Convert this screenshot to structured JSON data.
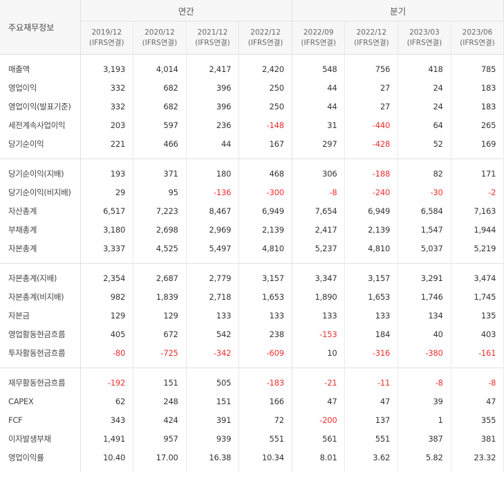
{
  "header": {
    "corner_label": "주요재무정보",
    "annual_label": "연간",
    "quarter_label": "분기",
    "annual_periods": [
      {
        "date": "2019/12",
        "basis": "(IFRS연결)"
      },
      {
        "date": "2020/12",
        "basis": "(IFRS연결)"
      },
      {
        "date": "2021/12",
        "basis": "(IFRS연결)"
      },
      {
        "date": "2022/12",
        "basis": "(IFRS연결)"
      }
    ],
    "quarter_periods": [
      {
        "date": "2022/09",
        "basis": "(IFRS연결)"
      },
      {
        "date": "2022/12",
        "basis": "(IFRS연결)"
      },
      {
        "date": "2023/03",
        "basis": "(IFRS연결)"
      },
      {
        "date": "2023/06",
        "basis": "(IFRS연결)"
      }
    ]
  },
  "colors": {
    "negative": "#ee2e2e",
    "text": "#333333",
    "header_bg": "#f7f7f7"
  },
  "groups": [
    [
      {
        "label": "매출액",
        "values": [
          "3,193",
          "4,014",
          "2,417",
          "2,420",
          "548",
          "756",
          "418",
          "785"
        ]
      },
      {
        "label": "영업이익",
        "values": [
          "332",
          "682",
          "396",
          "250",
          "44",
          "27",
          "24",
          "183"
        ]
      },
      {
        "label": "영업이익(발표기준)",
        "values": [
          "332",
          "682",
          "396",
          "250",
          "44",
          "27",
          "24",
          "183"
        ]
      },
      {
        "label": "세전계속사업이익",
        "values": [
          "203",
          "597",
          "236",
          "-148",
          "31",
          "-440",
          "64",
          "265"
        ]
      },
      {
        "label": "당기순이익",
        "values": [
          "221",
          "466",
          "44",
          "167",
          "297",
          "-428",
          "52",
          "169"
        ]
      }
    ],
    [
      {
        "label": "당기순이익(지배)",
        "values": [
          "193",
          "371",
          "180",
          "468",
          "306",
          "-188",
          "82",
          "171"
        ]
      },
      {
        "label": "당기순이익(비지배)",
        "values": [
          "29",
          "95",
          "-136",
          "-300",
          "-8",
          "-240",
          "-30",
          "-2"
        ]
      },
      {
        "label": "자산총계",
        "values": [
          "6,517",
          "7,223",
          "8,467",
          "6,949",
          "7,654",
          "6,949",
          "6,584",
          "7,163"
        ]
      },
      {
        "label": "부채총계",
        "values": [
          "3,180",
          "2,698",
          "2,969",
          "2,139",
          "2,417",
          "2,139",
          "1,547",
          "1,944"
        ]
      },
      {
        "label": "자본총계",
        "values": [
          "3,337",
          "4,525",
          "5,497",
          "4,810",
          "5,237",
          "4,810",
          "5,037",
          "5,219"
        ]
      }
    ],
    [
      {
        "label": "자본총계(지배)",
        "values": [
          "2,354",
          "2,687",
          "2,779",
          "3,157",
          "3,347",
          "3,157",
          "3,291",
          "3,474"
        ]
      },
      {
        "label": "자본총계(비지배)",
        "values": [
          "982",
          "1,839",
          "2,718",
          "1,653",
          "1,890",
          "1,653",
          "1,746",
          "1,745"
        ]
      },
      {
        "label": "자본금",
        "values": [
          "129",
          "129",
          "133",
          "133",
          "133",
          "133",
          "134",
          "135"
        ]
      },
      {
        "label": "영업활동현금흐름",
        "values": [
          "405",
          "672",
          "542",
          "238",
          "-153",
          "184",
          "40",
          "403"
        ]
      },
      {
        "label": "투자활동현금흐름",
        "values": [
          "-80",
          "-725",
          "-342",
          "-609",
          "10",
          "-316",
          "-380",
          "-161"
        ]
      }
    ],
    [
      {
        "label": "재무활동현금흐름",
        "values": [
          "-192",
          "151",
          "505",
          "-183",
          "-21",
          "-11",
          "-8",
          "-8"
        ]
      },
      {
        "label": "CAPEX",
        "values": [
          "62",
          "248",
          "151",
          "166",
          "47",
          "47",
          "39",
          "47"
        ]
      },
      {
        "label": "FCF",
        "values": [
          "343",
          "424",
          "391",
          "72",
          "-200",
          "137",
          "1",
          "355"
        ]
      },
      {
        "label": "이자발생부채",
        "values": [
          "1,491",
          "957",
          "939",
          "551",
          "561",
          "551",
          "387",
          "381"
        ]
      },
      {
        "label": "영업이익률",
        "values": [
          "10.40",
          "17.00",
          "16.38",
          "10.34",
          "8.01",
          "3.62",
          "5.82",
          "23.32"
        ]
      }
    ]
  ]
}
